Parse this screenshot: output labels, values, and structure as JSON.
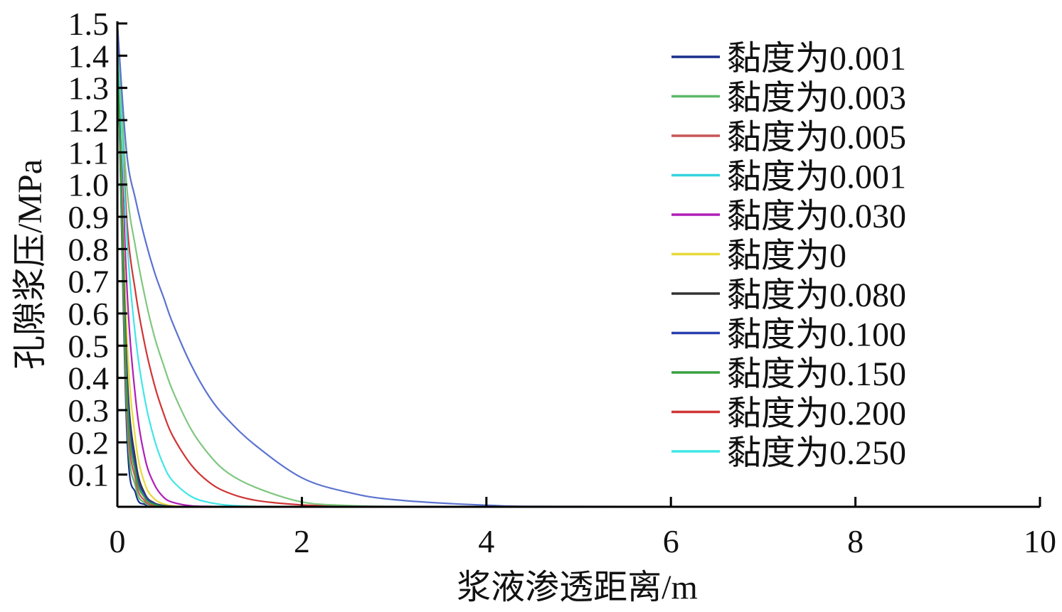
{
  "chart_data": {
    "type": "line",
    "xlabel": "浆液渗透距离/m",
    "ylabel": "孔隙浆压/MPa",
    "xlim": [
      0,
      10
    ],
    "ylim": [
      0,
      1.5
    ],
    "x_ticks": [
      "0",
      "2",
      "4",
      "6",
      "8",
      "10"
    ],
    "y_ticks": [
      "0.1",
      "0.2",
      "0.3",
      "0.4",
      "0.5",
      "0.6",
      "0.7",
      "0.8",
      "0.9",
      "1.0",
      "1.1",
      "1.2",
      "1.3",
      "1.4",
      "1.5"
    ],
    "legend_position": "top-right",
    "grid": false,
    "x": [
      0,
      0.1,
      0.2,
      0.3,
      0.4,
      0.5,
      0.6,
      0.8,
      1.0,
      1.2,
      1.5,
      2.0,
      2.5,
      3.0,
      4.0,
      5.0,
      10.0
    ],
    "series": [
      {
        "name": "黏度为0.001",
        "color": "#1a2f8a",
        "values": [
          1.5,
          0.25,
          0.04,
          0.007,
          0.001,
          0,
          0,
          0,
          0,
          0,
          0,
          0,
          0,
          0,
          0,
          0,
          0
        ]
      },
      {
        "name": "黏度为0.003",
        "color": "#5cb86a",
        "values": [
          1.5,
          0.3,
          0.06,
          0.012,
          0.002,
          0,
          0,
          0,
          0,
          0,
          0,
          0,
          0,
          0,
          0,
          0,
          0
        ]
      },
      {
        "name": "黏度为0.005",
        "color": "#c85555",
        "values": [
          1.5,
          0.34,
          0.08,
          0.018,
          0.004,
          0.001,
          0,
          0,
          0,
          0,
          0,
          0,
          0,
          0,
          0,
          0,
          0
        ]
      },
      {
        "name": "黏度为0.001",
        "color": "#35d4e0",
        "values": [
          1.5,
          0.4,
          0.11,
          0.03,
          0.008,
          0.002,
          0,
          0,
          0,
          0,
          0,
          0,
          0,
          0,
          0,
          0,
          0
        ]
      },
      {
        "name": "黏度为0.030",
        "color": "#b01eb8",
        "values": [
          1.5,
          0.7,
          0.33,
          0.15,
          0.07,
          0.03,
          0.014,
          0.003,
          0.001,
          0,
          0,
          0,
          0,
          0,
          0,
          0,
          0
        ]
      },
      {
        "name": "黏度为0",
        "color": "#e8d83a",
        "values": [
          1.5,
          0.55,
          0.2,
          0.07,
          0.025,
          0.009,
          0.003,
          0,
          0,
          0,
          0,
          0,
          0,
          0,
          0,
          0,
          0
        ]
      },
      {
        "name": "黏度为0.080",
        "color": "#333333",
        "values": [
          1.5,
          0.45,
          0.14,
          0.04,
          0.012,
          0.004,
          0.001,
          0,
          0,
          0,
          0,
          0,
          0,
          0,
          0,
          0,
          0
        ]
      },
      {
        "name": "黏度为0.100",
        "color": "#2a3fb0",
        "values": [
          1.5,
          0.42,
          0.12,
          0.035,
          0.01,
          0.003,
          0.001,
          0,
          0,
          0,
          0,
          0,
          0,
          0,
          0,
          0,
          0
        ]
      },
      {
        "name": "黏度为0.150",
        "color": "#3aa040",
        "values": [
          1.5,
          0.38,
          0.1,
          0.027,
          0.007,
          0.002,
          0,
          0,
          0,
          0,
          0,
          0,
          0,
          0,
          0,
          0,
          0
        ]
      },
      {
        "name": "黏度为0.200",
        "color": "#d03535",
        "values": [
          1.5,
          0.9,
          0.66,
          0.5,
          0.38,
          0.29,
          0.22,
          0.13,
          0.075,
          0.044,
          0.02,
          0.006,
          0.002,
          0,
          0,
          0,
          0
        ]
      },
      {
        "name": "黏度为0.250",
        "color": "#40e6e6",
        "values": [
          1.5,
          0.85,
          0.52,
          0.33,
          0.21,
          0.13,
          0.08,
          0.032,
          0.013,
          0.005,
          0.001,
          0,
          0,
          0,
          0,
          0,
          0
        ]
      },
      {
        "name": "",
        "color": "#7fc77f",
        "values": [
          1.5,
          1.0,
          0.8,
          0.65,
          0.53,
          0.44,
          0.36,
          0.24,
          0.16,
          0.105,
          0.06,
          0.015,
          0.004,
          0.001,
          0,
          0,
          0
        ]
      },
      {
        "name": "",
        "color": "#5b73d0",
        "values": [
          1.5,
          1.1,
          0.95,
          0.83,
          0.73,
          0.65,
          0.57,
          0.44,
          0.34,
          0.27,
          0.19,
          0.09,
          0.045,
          0.022,
          0.005,
          0.001,
          0
        ]
      }
    ]
  }
}
